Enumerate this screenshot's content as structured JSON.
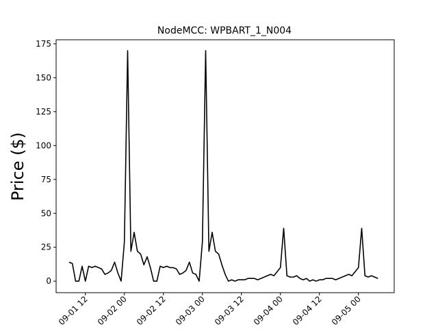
{
  "chart_data": {
    "type": "line",
    "title": "NodeMCC: WPBART_1_N004",
    "y_label": "Price ($)",
    "x": [
      "09-01 07",
      "09-01 08",
      "09-01 09",
      "09-01 10",
      "09-01 11",
      "09-01 12",
      "09-01 13",
      "09-01 14",
      "09-01 15",
      "09-01 16",
      "09-01 17",
      "09-01 18",
      "09-01 19",
      "09-01 20",
      "09-01 21",
      "09-01 22",
      "09-01 23",
      "09-02 00",
      "09-02 01",
      "09-02 02",
      "09-02 03",
      "09-02 04",
      "09-02 05",
      "09-02 06",
      "09-02 07",
      "09-02 08",
      "09-02 09",
      "09-02 10",
      "09-02 11",
      "09-02 12",
      "09-02 13",
      "09-02 14",
      "09-02 15",
      "09-02 16",
      "09-02 17",
      "09-02 18",
      "09-02 19",
      "09-02 20",
      "09-02 21",
      "09-02 22",
      "09-02 23",
      "09-03 00",
      "09-03 01",
      "09-03 02",
      "09-03 03",
      "09-03 04",
      "09-03 05",
      "09-03 06",
      "09-03 07",
      "09-03 08",
      "09-03 09",
      "09-03 10",
      "09-03 11",
      "09-03 12",
      "09-03 13",
      "09-03 14",
      "09-03 15",
      "09-03 16",
      "09-03 17",
      "09-03 18",
      "09-03 19",
      "09-03 20",
      "09-03 21",
      "09-03 22",
      "09-03 23",
      "09-04 00",
      "09-04 01",
      "09-04 02",
      "09-04 03",
      "09-04 04",
      "09-04 05",
      "09-04 06",
      "09-04 07",
      "09-04 08",
      "09-04 09",
      "09-04 10",
      "09-04 11",
      "09-04 12",
      "09-04 13",
      "09-04 14",
      "09-04 15",
      "09-04 16",
      "09-04 17",
      "09-04 18",
      "09-04 19",
      "09-04 20",
      "09-04 21",
      "09-04 22",
      "09-04 23",
      "09-05 00",
      "09-05 01",
      "09-05 02",
      "09-05 03",
      "09-05 04",
      "09-05 05",
      "09-05 06"
    ],
    "series": [
      {
        "name": "WPBART_1_N004",
        "color": "#000000",
        "values": [
          14,
          13,
          0,
          0,
          11,
          0,
          11,
          10,
          11,
          10,
          9,
          5,
          6,
          8,
          14,
          6,
          0,
          29,
          170,
          22,
          36,
          22,
          20,
          12,
          18,
          10,
          0,
          0,
          11,
          10,
          11,
          10,
          10,
          9,
          5,
          6,
          8,
          14,
          6,
          5,
          0,
          29,
          170,
          22,
          36,
          22,
          20,
          12,
          5,
          0,
          1,
          0,
          1,
          1,
          1,
          2,
          2,
          2,
          1,
          2,
          3,
          4,
          5,
          4,
          7,
          10,
          39,
          4,
          3,
          3,
          4,
          2,
          1,
          2,
          0,
          1,
          0,
          1,
          1,
          2,
          2,
          2,
          1,
          2,
          3,
          4,
          5,
          4,
          7,
          10,
          39,
          4,
          3,
          4,
          3,
          2
        ]
      }
    ],
    "xlim": [
      "09-01 03",
      "09-05 11"
    ],
    "xticks": [
      "09-01 12",
      "09-02 00",
      "09-02 12",
      "09-03 00",
      "09-03 12",
      "09-04 00",
      "09-04 12",
      "09-05 00"
    ],
    "ylim": [
      -8.5,
      178
    ],
    "yticks": [
      0,
      25,
      50,
      75,
      100,
      125,
      150,
      175
    ]
  }
}
